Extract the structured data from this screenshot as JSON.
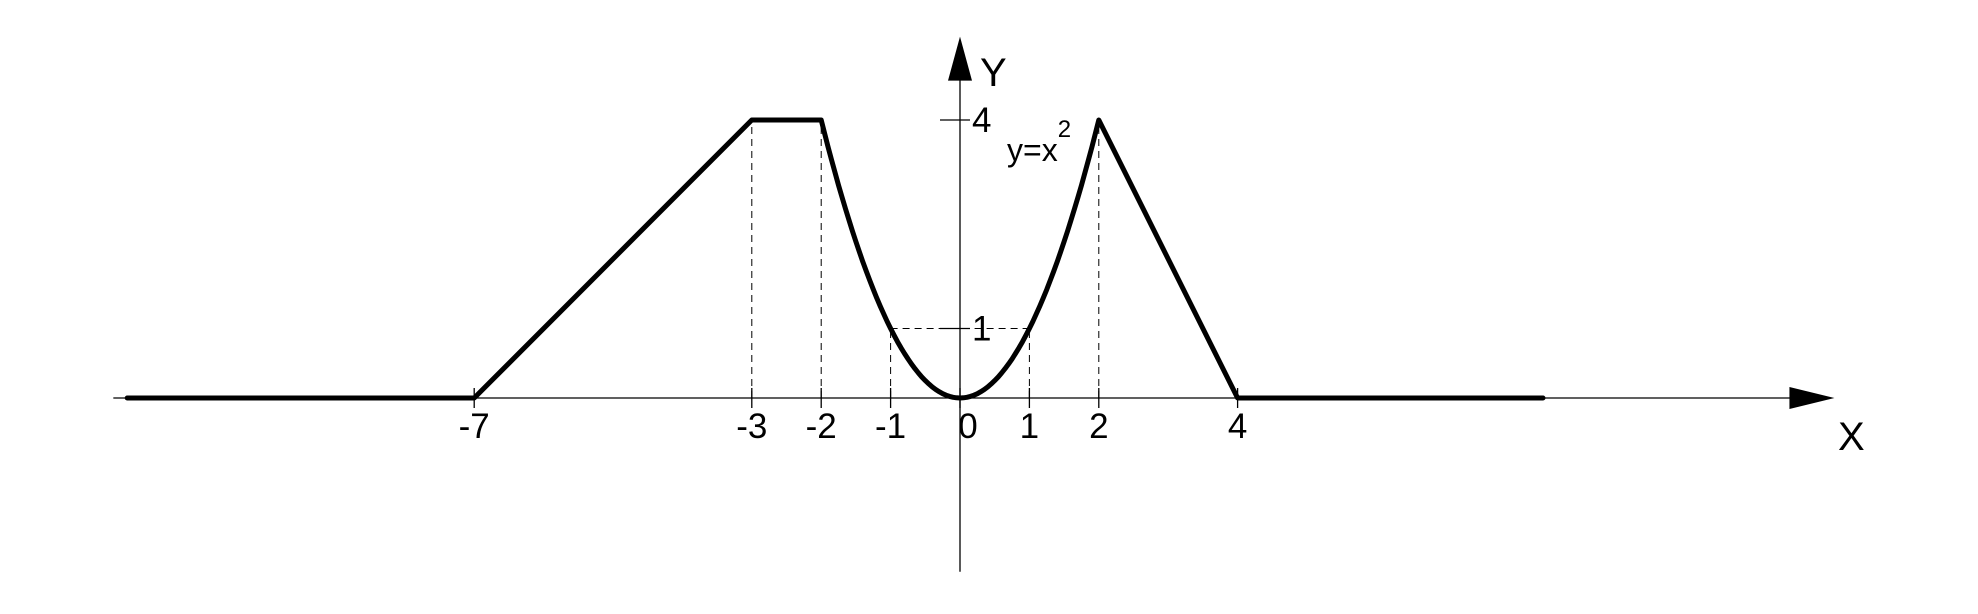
{
  "chart_data": {
    "type": "line",
    "series": [
      {
        "x": [
          -12,
          -7,
          -3,
          -2,
          -1.5,
          -1,
          -0.5,
          0,
          0.5,
          1,
          1.5,
          2,
          4,
          8.4
        ],
        "y": [
          0,
          0,
          4,
          4,
          2.25,
          1,
          0.25,
          0,
          0.25,
          1,
          2.25,
          4,
          0,
          0
        ]
      }
    ],
    "xlabel": "X",
    "ylabel": "Y",
    "x_tick_labels": [
      "-7",
      "-3",
      "-2",
      "-1",
      "0",
      "1",
      "2",
      "4"
    ],
    "x_ticks": [
      -7,
      -3,
      -2,
      -1,
      0,
      1,
      2,
      4
    ],
    "y_tick_labels": [
      "1",
      "4"
    ],
    "y_ticks": [
      1,
      4
    ],
    "annotation": {
      "text": "y=x",
      "superscript": "2"
    },
    "guides": [
      {
        "x": -3,
        "y": 4
      },
      {
        "x": -2,
        "y": 4
      },
      {
        "x": -1,
        "y": 1
      },
      {
        "x": 1,
        "y": 1
      },
      {
        "x": 2,
        "y": 4
      },
      {
        "x": 4,
        "y": 0
      }
    ],
    "xlim": [
      -12.2,
      12.6
    ],
    "ylim": [
      -2.5,
      5.2
    ],
    "grid": false,
    "legend": "none"
  }
}
